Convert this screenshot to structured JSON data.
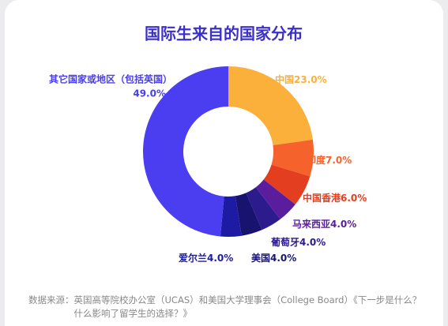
{
  "chart_data": {
    "type": "donut",
    "title": "国际生来自的国家分布",
    "categories": [
      "中国",
      "印度",
      "中国香港",
      "马来西亚",
      "葡萄牙",
      "美国",
      "爱尔兰",
      "其它国家或地区（包括英国）"
    ],
    "values": [
      23.0,
      7.0,
      6.0,
      4.0,
      4.0,
      4.0,
      4.0,
      49.0
    ],
    "value_labels": [
      "23.0%",
      "7.0%",
      "6.0%",
      "4.0%",
      "4.0%",
      "4.0%",
      "4.0%",
      "49.0%"
    ],
    "colors": [
      "#fbb03b",
      "#f5622c",
      "#e23e1f",
      "#5a1d9e",
      "#2b1b8c",
      "#17136e",
      "#1d1aa3",
      "#4a3ef0"
    ]
  },
  "source_label": "数据来源：",
  "source": "英国高等院校办公室（UCAS）和美国大学理事会（College Board）《下一步是什么？什么影响了留学生的选择？》"
}
